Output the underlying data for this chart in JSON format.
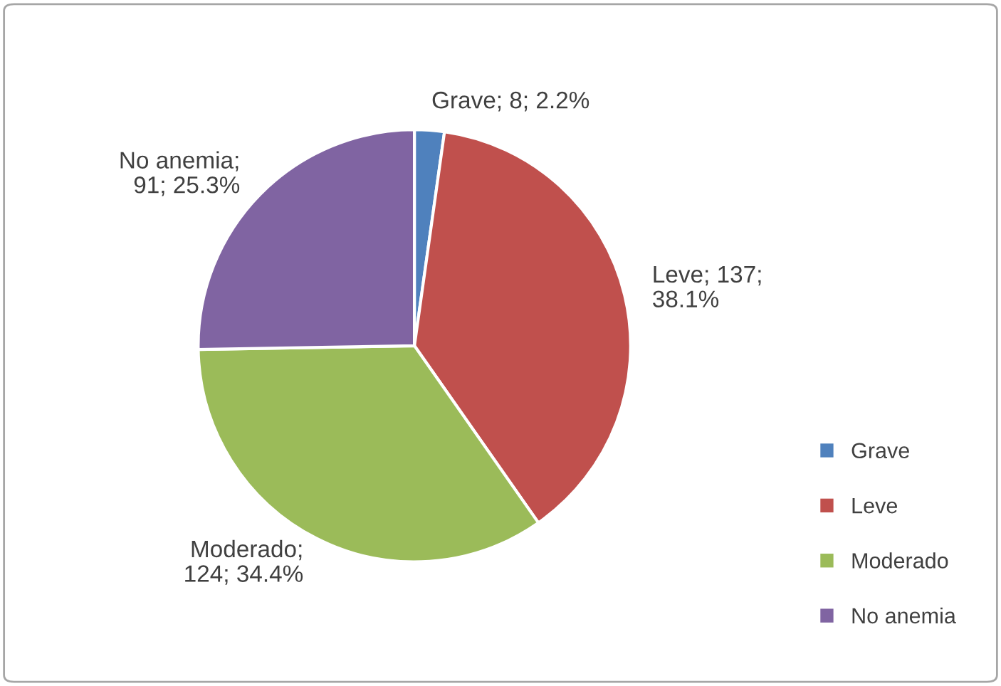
{
  "chart_data": {
    "type": "pie",
    "categories": [
      "Grave",
      "Leve",
      "Moderado",
      "No anemia"
    ],
    "values": [
      8,
      137,
      124,
      91
    ],
    "colors": [
      "#4f81bd",
      "#c0504d",
      "#9bbb59",
      "#8064a2"
    ],
    "value_labels": [
      "Grave; 8; 2.2%",
      "Leve; 137;\n38.1%",
      "Moderado;\n124; 34.4%",
      "No anemia;\n91; 25.3%"
    ],
    "legend": "right"
  }
}
